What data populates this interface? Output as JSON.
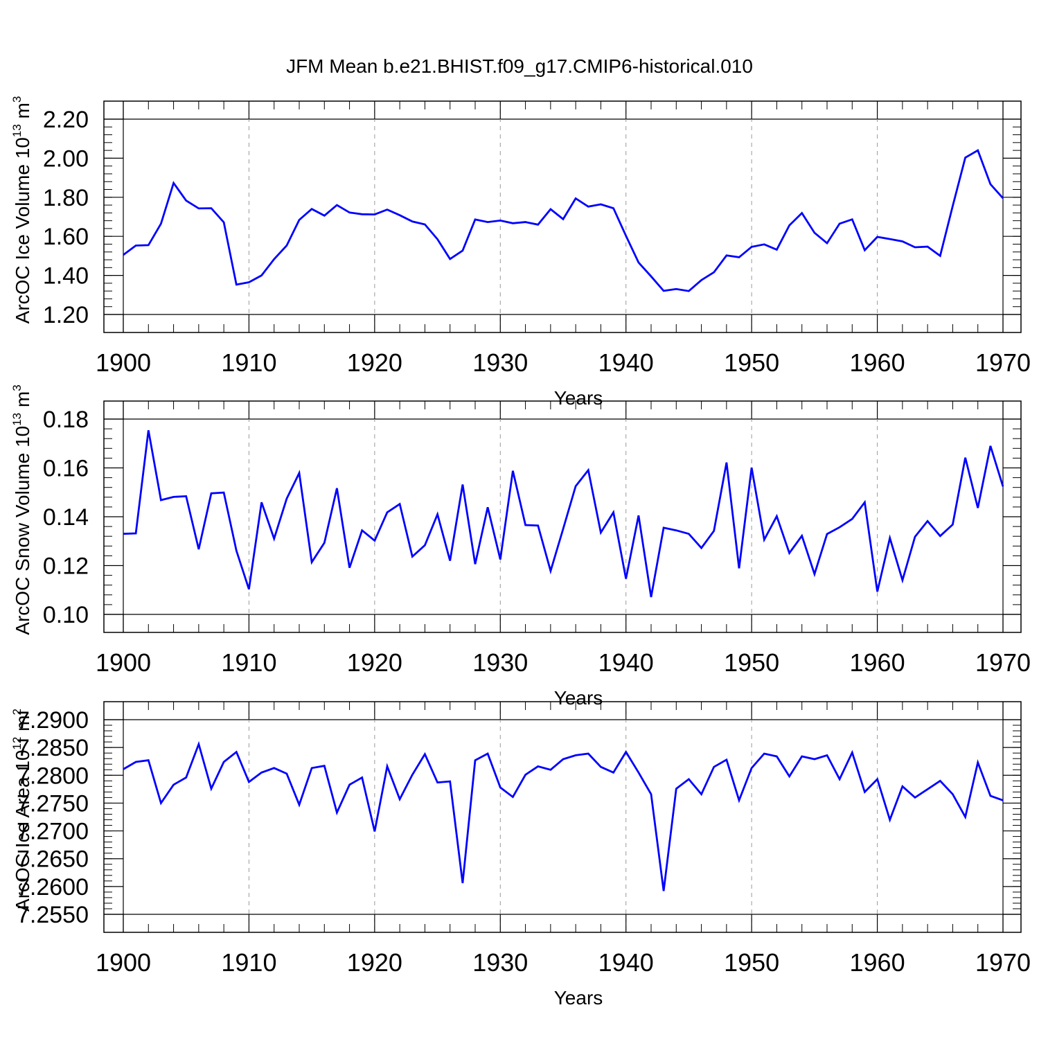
{
  "title": "JFM Mean b.e21.BHIST.f09_g17.CMIP6-historical.010",
  "colors": {
    "line": "#0000ff",
    "axis": "#000000",
    "grid": "#999999",
    "background": "#ffffff"
  },
  "chart_data": [
    {
      "type": "line",
      "ylabel": "ArcOC Ice Volume 10",
      "ylabel_sup": "13",
      "ylabel_unit": "m",
      "ylabel_unit_sup": "3",
      "xlabel": "Years",
      "xlim": [
        1900,
        1970
      ],
      "ylim": [
        1.2,
        2.2
      ],
      "xticks": [
        1900,
        1910,
        1920,
        1930,
        1940,
        1950,
        1960,
        1970
      ],
      "xtick_labels": [
        "1900",
        "1910",
        "1920",
        "1930",
        "1940",
        "1950",
        "1960",
        "1970"
      ],
      "yticks": [
        1.2,
        1.4,
        1.6,
        1.8,
        2.0,
        2.2
      ],
      "ytick_labels": [
        "1.20",
        "1.40",
        "1.60",
        "1.80",
        "2.00",
        "2.20"
      ],
      "minor_y_step": 0.04,
      "grid": "vertical dashed at major x ticks",
      "series": [
        {
          "name": "Ice Volume",
          "x_start": 1900,
          "values": [
            1.505,
            1.553,
            1.555,
            1.665,
            1.873,
            1.783,
            1.743,
            1.744,
            1.672,
            1.353,
            1.365,
            1.4,
            1.483,
            1.553,
            1.684,
            1.74,
            1.706,
            1.76,
            1.722,
            1.713,
            1.712,
            1.737,
            1.708,
            1.676,
            1.661,
            1.585,
            1.484,
            1.527,
            1.686,
            1.673,
            1.681,
            1.667,
            1.673,
            1.66,
            1.739,
            1.688,
            1.794,
            1.752,
            1.764,
            1.744,
            1.603,
            1.466,
            1.395,
            1.321,
            1.33,
            1.32,
            1.376,
            1.416,
            1.502,
            1.493,
            1.546,
            1.559,
            1.532,
            1.656,
            1.719,
            1.618,
            1.565,
            1.665,
            1.687,
            1.529,
            1.597,
            1.586,
            1.574,
            1.544,
            1.547,
            1.5,
            1.755,
            2.003,
            2.04,
            1.867,
            1.795
          ]
        }
      ]
    },
    {
      "type": "line",
      "ylabel": "ArcOC Snow Volume 10",
      "ylabel_sup": "13",
      "ylabel_unit": "m",
      "ylabel_unit_sup": "3",
      "xlabel": "Years",
      "xlim": [
        1900,
        1970
      ],
      "ylim": [
        0.1,
        0.18
      ],
      "xticks": [
        1900,
        1910,
        1920,
        1930,
        1940,
        1950,
        1960,
        1970
      ],
      "xtick_labels": [
        "1900",
        "1910",
        "1920",
        "1930",
        "1940",
        "1950",
        "1960",
        "1970"
      ],
      "yticks": [
        0.1,
        0.12,
        0.14,
        0.16,
        0.18
      ],
      "ytick_labels": [
        "0.10",
        "0.12",
        "0.14",
        "0.16",
        "0.18"
      ],
      "minor_y_step": 0.004,
      "grid": "vertical dashed at major x ticks",
      "series": [
        {
          "name": "Snow Volume",
          "x_start": 1900,
          "values": [
            0.133,
            0.1332,
            0.1754,
            0.1468,
            0.1481,
            0.1484,
            0.1267,
            0.1496,
            0.1499,
            0.1261,
            0.1103,
            0.1459,
            0.131,
            0.1474,
            0.1579,
            0.1214,
            0.1293,
            0.1517,
            0.1191,
            0.1344,
            0.1302,
            0.1418,
            0.1452,
            0.1237,
            0.1283,
            0.141,
            0.122,
            0.1532,
            0.1206,
            0.1439,
            0.1225,
            0.1588,
            0.1366,
            0.1364,
            0.1178,
            0.135,
            0.1525,
            0.1591,
            0.1335,
            0.1418,
            0.1146,
            0.1405,
            0.1071,
            0.1355,
            0.1344,
            0.133,
            0.1272,
            0.1342,
            0.1622,
            0.1189,
            0.1601,
            0.1306,
            0.1402,
            0.1251,
            0.1322,
            0.1165,
            0.1329,
            0.1357,
            0.1391,
            0.1459,
            0.1093,
            0.1313,
            0.114,
            0.1318,
            0.1382,
            0.1321,
            0.1368,
            0.1642,
            0.1436,
            0.169,
            0.1524
          ]
        }
      ]
    },
    {
      "type": "line",
      "ylabel": "ArcOC Ice Area 10",
      "ylabel_sup": "12",
      "ylabel_unit": "m",
      "ylabel_unit_sup": "2",
      "xlabel": "Years",
      "xlim": [
        1900,
        1970
      ],
      "ylim": [
        7.255,
        7.29
      ],
      "xticks": [
        1900,
        1910,
        1920,
        1930,
        1940,
        1950,
        1960,
        1970
      ],
      "xtick_labels": [
        "1900",
        "1910",
        "1920",
        "1930",
        "1940",
        "1950",
        "1960",
        "1970"
      ],
      "yticks": [
        7.255,
        7.26,
        7.265,
        7.27,
        7.275,
        7.28,
        7.285,
        7.29
      ],
      "ytick_labels": [
        "7.2550",
        "7.2600",
        "7.2650",
        "7.2700",
        "7.2750",
        "7.2800",
        "7.2850",
        "7.2900"
      ],
      "minor_y_step": 0.001,
      "grid": "vertical dashed at major x ticks",
      "series": [
        {
          "name": "Ice Area",
          "x_start": 1900,
          "values": [
            7.2811,
            7.2824,
            7.2827,
            7.275,
            7.2783,
            7.2796,
            7.2856,
            7.2776,
            7.2824,
            7.2842,
            7.2788,
            7.2805,
            7.2813,
            7.2803,
            7.2747,
            7.2813,
            7.2817,
            7.2733,
            7.2783,
            7.2796,
            7.2699,
            7.2816,
            7.2757,
            7.2801,
            7.2838,
            7.2787,
            7.2789,
            7.2606,
            7.2827,
            7.2839,
            7.2778,
            7.2761,
            7.2801,
            7.2816,
            7.281,
            7.2829,
            7.2836,
            7.2839,
            7.2815,
            7.2805,
            7.2842,
            7.2805,
            7.2766,
            7.2592,
            7.2776,
            7.2793,
            7.2766,
            7.2815,
            7.2828,
            7.2755,
            7.2813,
            7.2839,
            7.2834,
            7.2798,
            7.2834,
            7.2829,
            7.2836,
            7.2793,
            7.2841,
            7.277,
            7.2793,
            7.272,
            7.278,
            7.276,
            7.2775,
            7.279,
            7.2766,
            7.2725,
            7.2823,
            7.2763,
            7.2755
          ]
        }
      ]
    }
  ]
}
